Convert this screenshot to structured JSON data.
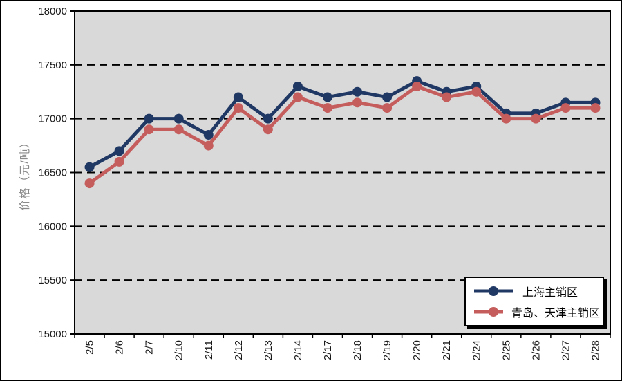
{
  "chart_data": {
    "type": "line",
    "title": "",
    "xlabel": "",
    "ylabel": "价格（元/吨）",
    "ylim": [
      15000,
      18000
    ],
    "ytick_interval": 500,
    "yticks": [
      15000,
      15500,
      16000,
      16500,
      17000,
      17500,
      18000
    ],
    "grid": "horizontal dashed black lines on gray plot background",
    "plot_background": "#d9d9d9",
    "legend_position": "bottom-right inside plot, white box with black border and shadow",
    "categories": [
      "2/5",
      "2/6",
      "2/7",
      "2/10",
      "2/11",
      "2/12",
      "2/13",
      "2/14",
      "2/17",
      "2/18",
      "2/19",
      "2/20",
      "2/21",
      "2/24",
      "2/25",
      "2/26",
      "2/27",
      "2/28"
    ],
    "series": [
      {
        "name": "上海主销区",
        "color": "#1f3864",
        "marker": "circle",
        "values": [
          16550,
          16700,
          17000,
          17000,
          16850,
          17200,
          17000,
          17300,
          17200,
          17250,
          17200,
          17350,
          17250,
          17300,
          17050,
          17050,
          17150,
          17150
        ]
      },
      {
        "name": "青岛、天津主销区",
        "color": "#c55d5d",
        "marker": "circle",
        "values": [
          16400,
          16600,
          16900,
          16900,
          16750,
          17100,
          16900,
          17200,
          17100,
          17150,
          17100,
          17300,
          17200,
          17250,
          17000,
          17000,
          17100,
          17100
        ]
      }
    ]
  }
}
